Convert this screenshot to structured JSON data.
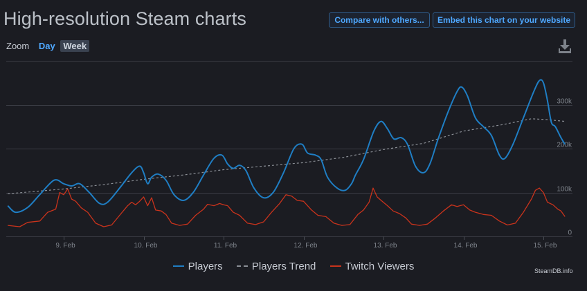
{
  "header": {
    "title": "High-resolution Steam charts",
    "compare_label": "Compare with others...",
    "embed_label": "Embed this chart on your website"
  },
  "zoom": {
    "label": "Zoom",
    "options": [
      "Day",
      "Week"
    ],
    "active": "Week"
  },
  "download_icon": "download-icon",
  "credit": "SteamDB.info",
  "colors": {
    "background": "#1b1c22",
    "players": "#1f7ec4",
    "trend": "#8b8f96",
    "twitch": "#c9331c",
    "accent": "#4fa8ff"
  },
  "chart_data": {
    "type": "line",
    "title": "",
    "x_tick_labels": [
      "9. Feb",
      "10. Feb",
      "11. Feb",
      "12. Feb",
      "13. Feb",
      "14. Feb",
      "15. Feb"
    ],
    "xlim": [
      -0.7,
      6.15
    ],
    "y_tick_labels": [
      "0",
      "100k",
      "200k",
      "300k"
    ],
    "y_ticks": [
      0,
      100000,
      200000,
      300000
    ],
    "ylim": [
      0,
      400000
    ],
    "grid": true,
    "legend_position": "bottom",
    "series": [
      {
        "name": "Players",
        "color_key": "players",
        "points": [
          [
            -0.7,
            70000
          ],
          [
            -0.6,
            55000
          ],
          [
            -0.45,
            66000
          ],
          [
            -0.3,
            95000
          ],
          [
            -0.12,
            128000
          ],
          [
            0.0,
            120000
          ],
          [
            0.1,
            115000
          ],
          [
            0.2,
            120000
          ],
          [
            0.32,
            100000
          ],
          [
            0.45,
            75000
          ],
          [
            0.55,
            78000
          ],
          [
            0.7,
            110000
          ],
          [
            0.85,
            145000
          ],
          [
            0.95,
            160000
          ],
          [
            1.0,
            145000
          ],
          [
            1.05,
            120000
          ],
          [
            1.1,
            135000
          ],
          [
            1.18,
            142000
          ],
          [
            1.28,
            128000
          ],
          [
            1.38,
            95000
          ],
          [
            1.5,
            82000
          ],
          [
            1.62,
            100000
          ],
          [
            1.75,
            140000
          ],
          [
            1.88,
            178000
          ],
          [
            1.98,
            185000
          ],
          [
            2.05,
            165000
          ],
          [
            2.12,
            155000
          ],
          [
            2.2,
            162000
          ],
          [
            2.28,
            150000
          ],
          [
            2.38,
            110000
          ],
          [
            2.5,
            88000
          ],
          [
            2.62,
            100000
          ],
          [
            2.75,
            145000
          ],
          [
            2.88,
            200000
          ],
          [
            2.98,
            210000
          ],
          [
            3.05,
            190000
          ],
          [
            3.15,
            185000
          ],
          [
            3.22,
            175000
          ],
          [
            3.3,
            135000
          ],
          [
            3.42,
            110000
          ],
          [
            3.52,
            105000
          ],
          [
            3.6,
            120000
          ],
          [
            3.65,
            140000
          ],
          [
            3.75,
            175000
          ],
          [
            3.88,
            240000
          ],
          [
            3.97,
            262000
          ],
          [
            4.05,
            245000
          ],
          [
            4.13,
            222000
          ],
          [
            4.22,
            225000
          ],
          [
            4.3,
            210000
          ],
          [
            4.4,
            160000
          ],
          [
            4.5,
            145000
          ],
          [
            4.58,
            165000
          ],
          [
            4.68,
            220000
          ],
          [
            4.8,
            280000
          ],
          [
            4.92,
            330000
          ],
          [
            4.98,
            340000
          ],
          [
            5.05,
            320000
          ],
          [
            5.15,
            270000
          ],
          [
            5.25,
            250000
          ],
          [
            5.35,
            230000
          ],
          [
            5.45,
            185000
          ],
          [
            5.52,
            178000
          ],
          [
            5.62,
            210000
          ],
          [
            5.75,
            270000
          ],
          [
            5.88,
            330000
          ],
          [
            5.95,
            355000
          ],
          [
            6.0,
            350000
          ],
          [
            6.05,
            310000
          ],
          [
            6.1,
            260000
          ],
          [
            6.15,
            250000
          ],
          [
            6.22,
            225000
          ],
          [
            6.27,
            210000
          ]
        ]
      },
      {
        "name": "Players Trend",
        "color_key": "trend",
        "dashed": true,
        "points": [
          [
            -0.7,
            97000
          ],
          [
            0.0,
            108000
          ],
          [
            0.5,
            118000
          ],
          [
            1.0,
            130000
          ],
          [
            1.5,
            140000
          ],
          [
            2.0,
            152000
          ],
          [
            2.5,
            160000
          ],
          [
            3.0,
            168000
          ],
          [
            3.5,
            180000
          ],
          [
            4.0,
            198000
          ],
          [
            4.5,
            212000
          ],
          [
            5.0,
            240000
          ],
          [
            5.5,
            255000
          ],
          [
            5.85,
            268000
          ],
          [
            6.05,
            266000
          ],
          [
            6.27,
            262000
          ]
        ]
      },
      {
        "name": "Twitch Viewers",
        "color_key": "twitch",
        "points": [
          [
            -0.7,
            25000
          ],
          [
            -0.55,
            22000
          ],
          [
            -0.45,
            32000
          ],
          [
            -0.3,
            35000
          ],
          [
            -0.2,
            55000
          ],
          [
            -0.1,
            62000
          ],
          [
            -0.05,
            100000
          ],
          [
            0.0,
            95000
          ],
          [
            0.05,
            108000
          ],
          [
            0.1,
            85000
          ],
          [
            0.15,
            80000
          ],
          [
            0.22,
            65000
          ],
          [
            0.3,
            55000
          ],
          [
            0.4,
            30000
          ],
          [
            0.5,
            22000
          ],
          [
            0.6,
            26000
          ],
          [
            0.7,
            48000
          ],
          [
            0.8,
            70000
          ],
          [
            0.85,
            78000
          ],
          [
            0.9,
            72000
          ],
          [
            0.95,
            80000
          ],
          [
            1.0,
            90000
          ],
          [
            1.05,
            70000
          ],
          [
            1.1,
            88000
          ],
          [
            1.15,
            60000
          ],
          [
            1.22,
            58000
          ],
          [
            1.28,
            50000
          ],
          [
            1.35,
            30000
          ],
          [
            1.45,
            25000
          ],
          [
            1.55,
            28000
          ],
          [
            1.65,
            48000
          ],
          [
            1.75,
            62000
          ],
          [
            1.8,
            73000
          ],
          [
            1.88,
            70000
          ],
          [
            1.95,
            75000
          ],
          [
            2.0,
            72000
          ],
          [
            2.05,
            70000
          ],
          [
            2.12,
            55000
          ],
          [
            2.2,
            48000
          ],
          [
            2.3,
            30000
          ],
          [
            2.4,
            27000
          ],
          [
            2.5,
            33000
          ],
          [
            2.6,
            55000
          ],
          [
            2.7,
            75000
          ],
          [
            2.78,
            95000
          ],
          [
            2.85,
            92000
          ],
          [
            2.92,
            82000
          ],
          [
            3.0,
            80000
          ],
          [
            3.05,
            70000
          ],
          [
            3.1,
            60000
          ],
          [
            3.18,
            48000
          ],
          [
            3.28,
            45000
          ],
          [
            3.38,
            30000
          ],
          [
            3.48,
            25000
          ],
          [
            3.58,
            27000
          ],
          [
            3.68,
            50000
          ],
          [
            3.75,
            60000
          ],
          [
            3.82,
            78000
          ],
          [
            3.87,
            110000
          ],
          [
            3.92,
            90000
          ],
          [
            3.97,
            82000
          ],
          [
            4.05,
            70000
          ],
          [
            4.12,
            58000
          ],
          [
            4.2,
            52000
          ],
          [
            4.28,
            42000
          ],
          [
            4.35,
            28000
          ],
          [
            4.45,
            25000
          ],
          [
            4.55,
            28000
          ],
          [
            4.65,
            42000
          ],
          [
            4.75,
            58000
          ],
          [
            4.85,
            72000
          ],
          [
            4.92,
            68000
          ],
          [
            5.0,
            72000
          ],
          [
            5.08,
            60000
          ],
          [
            5.15,
            55000
          ],
          [
            5.25,
            50000
          ],
          [
            5.35,
            48000
          ],
          [
            5.45,
            35000
          ],
          [
            5.55,
            26000
          ],
          [
            5.65,
            30000
          ],
          [
            5.75,
            55000
          ],
          [
            5.85,
            85000
          ],
          [
            5.9,
            105000
          ],
          [
            5.95,
            110000
          ],
          [
            6.0,
            100000
          ],
          [
            6.05,
            78000
          ],
          [
            6.12,
            72000
          ],
          [
            6.18,
            62000
          ],
          [
            6.22,
            58000
          ],
          [
            6.27,
            45000
          ]
        ]
      }
    ]
  }
}
